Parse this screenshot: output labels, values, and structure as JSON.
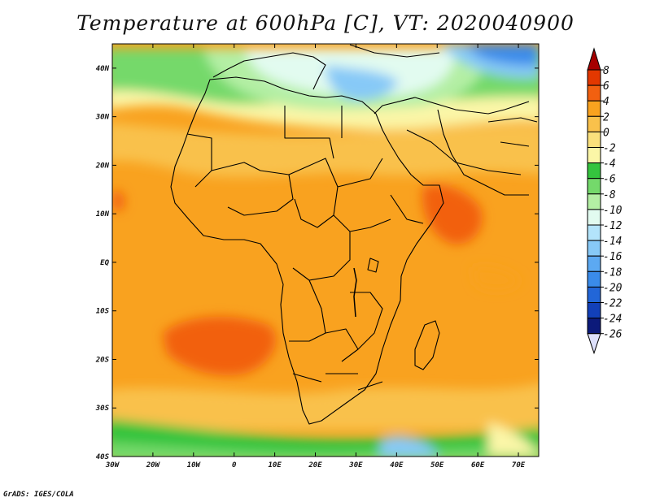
{
  "title": "Temperature at 600hPa [C], VT: 2020040900",
  "credit": "GrADS: IGES/COLA",
  "map": {
    "lon_range": [
      -30,
      75
    ],
    "lat_range": [
      -40,
      45
    ],
    "lon_ticks": [
      {
        "value": -30,
        "label": "30W"
      },
      {
        "value": -20,
        "label": "20W"
      },
      {
        "value": -10,
        "label": "10W"
      },
      {
        "value": 0,
        "label": "0"
      },
      {
        "value": 10,
        "label": "10E"
      },
      {
        "value": 20,
        "label": "20E"
      },
      {
        "value": 30,
        "label": "30E"
      },
      {
        "value": 40,
        "label": "40E"
      },
      {
        "value": 50,
        "label": "50E"
      },
      {
        "value": 60,
        "label": "60E"
      },
      {
        "value": 70,
        "label": "70E"
      }
    ],
    "lat_ticks": [
      {
        "value": 40,
        "label": "40N"
      },
      {
        "value": 30,
        "label": "30N"
      },
      {
        "value": 20,
        "label": "20N"
      },
      {
        "value": 10,
        "label": "10N"
      },
      {
        "value": 0,
        "label": "EQ"
      },
      {
        "value": -10,
        "label": "10S"
      },
      {
        "value": -20,
        "label": "20S"
      },
      {
        "value": -30,
        "label": "30S"
      },
      {
        "value": -40,
        "label": "40S"
      }
    ]
  },
  "colorbar": {
    "labels": [
      "8",
      "6",
      "4",
      "2",
      "0",
      "-2",
      "-4",
      "-6",
      "-8",
      "-10",
      "-12",
      "-14",
      "-16",
      "-18",
      "-20",
      "-22",
      "-24",
      "-26"
    ],
    "colors": [
      "#a50000",
      "#e33800",
      "#f26010",
      "#f9a21f",
      "#f9c14b",
      "#fae07c",
      "#fbf6a7",
      "#35c43e",
      "#74d96b",
      "#b4efa4",
      "#e2fbf0",
      "#b3e4fb",
      "#87c9f7",
      "#5ca9f2",
      "#3a8bea",
      "#2266d8",
      "#1240b9",
      "#0c1a7a",
      "#dde0fb"
    ]
  }
}
